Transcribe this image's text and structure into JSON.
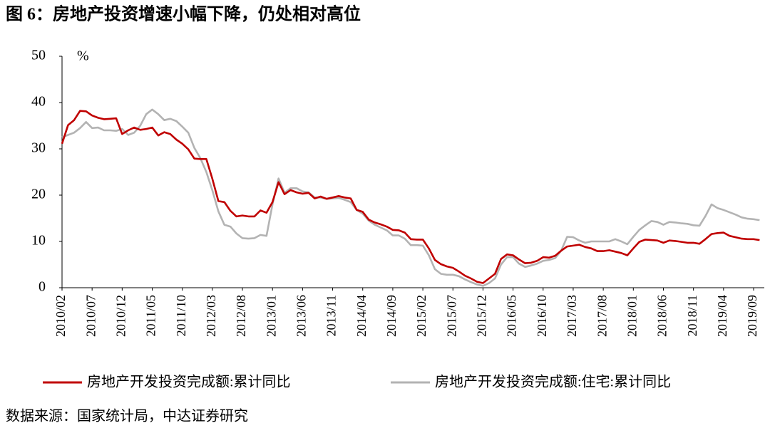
{
  "chart_data": {
    "type": "line",
    "title": "图 6：房地产投资增速小幅下降，仍处相对高位",
    "y_unit": "%",
    "source": "数据来源：国家统计局，中达证券研究",
    "categories": [
      "2010/02",
      null,
      null,
      null,
      null,
      "2010/07",
      null,
      null,
      null,
      null,
      "2010/12",
      null,
      null,
      null,
      null,
      "2011/05",
      null,
      null,
      null,
      null,
      "2011/10",
      null,
      null,
      null,
      null,
      "2012/03",
      null,
      null,
      null,
      null,
      "2012/08",
      null,
      null,
      null,
      null,
      "2013/01",
      null,
      null,
      null,
      null,
      "2013/06",
      null,
      null,
      null,
      null,
      "2013/11",
      null,
      null,
      null,
      null,
      "2014/04",
      null,
      null,
      null,
      null,
      "2014/09",
      null,
      null,
      null,
      null,
      "2015/02",
      null,
      null,
      null,
      null,
      "2015/07",
      null,
      null,
      null,
      null,
      "2015/12",
      null,
      null,
      null,
      null,
      "2016/05",
      null,
      null,
      null,
      null,
      "2016/10",
      null,
      null,
      null,
      null,
      "2017/03",
      null,
      null,
      null,
      null,
      "2017/08",
      null,
      null,
      null,
      null,
      "2018/01",
      null,
      null,
      null,
      null,
      "2018/06",
      null,
      null,
      null,
      null,
      "2018/11",
      null,
      null,
      null,
      null,
      "2019/04",
      null,
      null,
      null,
      null,
      "2019/09",
      null
    ],
    "series": [
      {
        "name": "房地产开发投资完成额:累计同比",
        "color": "#c00000",
        "values": [
          31.1,
          35.1,
          36.2,
          38.2,
          38.1,
          37.2,
          36.7,
          36.4,
          36.5,
          36.6,
          33.2,
          34.0,
          34.6,
          34.1,
          34.3,
          34.6,
          32.9,
          33.6,
          33.2,
          32.0,
          31.1,
          29.9,
          27.9,
          27.8,
          27.8,
          23.5,
          18.7,
          18.5,
          16.6,
          15.4,
          15.6,
          15.4,
          15.4,
          16.7,
          16.2,
          18.5,
          22.8,
          20.2,
          21.1,
          20.6,
          20.3,
          20.5,
          19.3,
          19.7,
          19.2,
          19.5,
          19.8,
          19.5,
          19.3,
          16.8,
          16.4,
          14.7,
          14.1,
          13.7,
          13.2,
          12.5,
          12.4,
          11.9,
          10.5,
          10.4,
          10.4,
          8.5,
          6.0,
          5.1,
          4.6,
          4.3,
          3.5,
          2.6,
          2.0,
          1.3,
          1.0,
          2.0,
          3.0,
          6.2,
          7.2,
          7.0,
          6.1,
          5.3,
          5.4,
          5.8,
          6.6,
          6.5,
          6.9,
          8.0,
          8.9,
          9.1,
          9.3,
          8.8,
          8.5,
          7.9,
          7.9,
          8.1,
          7.8,
          7.5,
          7.0,
          8.5,
          9.9,
          10.4,
          10.3,
          10.2,
          9.7,
          10.2,
          10.1,
          9.9,
          9.7,
          9.7,
          9.5,
          10.5,
          11.6,
          11.8,
          11.9,
          11.2,
          10.9,
          10.6,
          10.5,
          10.5,
          10.3
        ]
      },
      {
        "name": "房地产开发投资完成额:住宅:累计同比",
        "color": "#b3b3b3",
        "values": [
          32.5,
          33.0,
          33.5,
          34.5,
          35.8,
          34.5,
          34.6,
          34.0,
          34.0,
          33.9,
          34.3,
          33.0,
          33.5,
          35.0,
          37.5,
          38.5,
          37.5,
          36.2,
          36.5,
          36.0,
          34.8,
          33.5,
          30.2,
          28.0,
          25.0,
          21.0,
          16.5,
          13.6,
          13.2,
          11.7,
          10.7,
          10.6,
          10.7,
          11.4,
          11.2,
          18.0,
          23.6,
          20.5,
          21.5,
          21.5,
          20.8,
          20.6,
          19.5,
          19.5,
          19.2,
          19.3,
          19.4,
          19.0,
          18.5,
          16.8,
          16.0,
          14.5,
          13.6,
          13.0,
          12.4,
          11.3,
          11.3,
          10.6,
          9.2,
          9.2,
          9.1,
          7.0,
          4.0,
          3.0,
          2.8,
          2.8,
          2.5,
          1.8,
          1.2,
          0.7,
          0.4,
          1.0,
          2.0,
          5.0,
          6.6,
          6.6,
          5.2,
          4.5,
          4.8,
          5.2,
          5.8,
          6.0,
          6.4,
          8.0,
          11.0,
          10.9,
          10.2,
          9.7,
          10.0,
          10.0,
          10.0,
          10.0,
          10.5,
          10.0,
          9.4,
          11.0,
          12.5,
          13.5,
          14.4,
          14.2,
          13.6,
          14.2,
          14.1,
          13.9,
          13.8,
          13.5,
          13.4,
          15.5,
          18.0,
          17.2,
          16.8,
          16.3,
          15.8,
          15.2,
          14.9,
          14.8,
          14.6
        ]
      }
    ],
    "ylim": [
      0,
      50
    ],
    "yticks": [
      0,
      10,
      20,
      30,
      40,
      50
    ],
    "grid": false
  }
}
